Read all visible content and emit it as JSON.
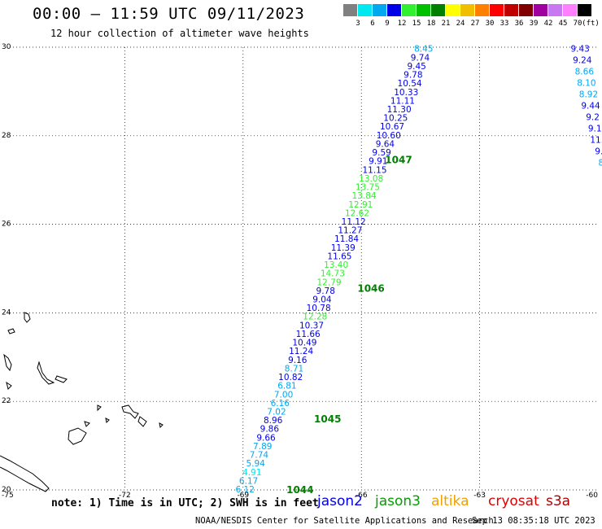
{
  "header": {
    "title": "00:00 – 11:59 UTC 09/11/2023",
    "subtitle": "12 hour collection of altimeter wave heights"
  },
  "color_scale": {
    "labels": [
      "3",
      "6",
      "9",
      "12",
      "15",
      "18",
      "21",
      "24",
      "27",
      "30",
      "33",
      "36",
      "39",
      "42",
      "45",
      "70"
    ],
    "unit": "(ft)",
    "colors": [
      "#808080",
      "#00e8f0",
      "#00a8f0",
      "#0000e8",
      "#30f030",
      "#00c000",
      "#008000",
      "#ffff00",
      "#f0c000",
      "#ff8000",
      "#ff0000",
      "#c00000",
      "#800000",
      "#a000a0",
      "#c878f0",
      "#ff80ff",
      "#000000"
    ]
  },
  "axes": {
    "lon_labels": [
      "-75",
      "-72",
      "-69",
      "-66",
      "-63",
      "-60"
    ],
    "lat_labels": [
      "30",
      "28",
      "26",
      "24",
      "22",
      "20"
    ]
  },
  "cycle_labels": [
    {
      "text": "1047",
      "lon": -65.4,
      "lat": 27.45
    },
    {
      "text": "1046",
      "lon": -66.1,
      "lat": 24.55
    },
    {
      "text": "1045",
      "lon": -67.2,
      "lat": 21.6
    },
    {
      "text": "1044",
      "lon": -67.9,
      "lat": 20.0
    }
  ],
  "tracks": [
    {
      "name": "main",
      "start": {
        "lon": -68.95,
        "lat": 20.0
      },
      "end": {
        "lon": -64.42,
        "lat": 29.95
      },
      "values": [
        {
          "v": "6.12",
          "c": "#00a8f0"
        },
        {
          "v": "6.17",
          "c": "#00a8f0"
        },
        {
          "v": "4.91",
          "c": "#00e8f0"
        },
        {
          "v": "5.94",
          "c": "#00a8f0"
        },
        {
          "v": "7.74",
          "c": "#00a8f0"
        },
        {
          "v": "7.89",
          "c": "#00a8f0"
        },
        {
          "v": "9.66",
          "c": "#0000e8"
        },
        {
          "v": "9.86",
          "c": "#0000e8"
        },
        {
          "v": "8.96",
          "c": "#0000e8"
        },
        {
          "v": "7.02",
          "c": "#00a8f0"
        },
        {
          "v": "6.16",
          "c": "#00a8f0"
        },
        {
          "v": "7.00",
          "c": "#00a8f0"
        },
        {
          "v": "6.81",
          "c": "#00a8f0"
        },
        {
          "v": "10.82",
          "c": "#0000e8"
        },
        {
          "v": "8.71",
          "c": "#00a8f0"
        },
        {
          "v": "9.16",
          "c": "#0000e8"
        },
        {
          "v": "11.24",
          "c": "#0000e8"
        },
        {
          "v": "10.49",
          "c": "#0000e8"
        },
        {
          "v": "11.66",
          "c": "#0000e8"
        },
        {
          "v": "10.37",
          "c": "#0000e8"
        },
        {
          "v": "12.28",
          "c": "#30f030"
        },
        {
          "v": "10.78",
          "c": "#0000e8"
        },
        {
          "v": "9.04",
          "c": "#0000e8"
        },
        {
          "v": "9.78",
          "c": "#0000e8"
        },
        {
          "v": "12.79",
          "c": "#30f030"
        },
        {
          "v": "14.73",
          "c": "#30f030"
        },
        {
          "v": "13.40",
          "c": "#30f030"
        },
        {
          "v": "11.65",
          "c": "#0000e8"
        },
        {
          "v": "11.39",
          "c": "#0000e8"
        },
        {
          "v": "11.84",
          "c": "#0000e8"
        },
        {
          "v": "11.27",
          "c": "#0000e8"
        },
        {
          "v": "11.12",
          "c": "#0000e8"
        },
        {
          "v": "12.62",
          "c": "#30f030"
        },
        {
          "v": "12.91",
          "c": "#30f030"
        },
        {
          "v": "13.84",
          "c": "#30f030"
        },
        {
          "v": "13.75",
          "c": "#30f030"
        },
        {
          "v": "13.08",
          "c": "#30f030"
        },
        {
          "v": "11.15",
          "c": "#0000e8"
        },
        {
          "v": "9.91",
          "c": "#0000e8"
        },
        {
          "v": "9.59",
          "c": "#0000e8"
        },
        {
          "v": "9.64",
          "c": "#0000e8"
        },
        {
          "v": "10.60",
          "c": "#0000e8"
        },
        {
          "v": "10.67",
          "c": "#0000e8"
        },
        {
          "v": "10.25",
          "c": "#0000e8"
        },
        {
          "v": "11.30",
          "c": "#0000e8"
        },
        {
          "v": "11.11",
          "c": "#0000e8"
        },
        {
          "v": "10.33",
          "c": "#0000e8"
        },
        {
          "v": "10.54",
          "c": "#0000e8"
        },
        {
          "v": "9.78",
          "c": "#0000e8"
        },
        {
          "v": "9.45",
          "c": "#0000e8"
        },
        {
          "v": "9.74",
          "c": "#0000e8"
        },
        {
          "v": "8.45",
          "c": "#00a8f0"
        }
      ]
    },
    {
      "name": "east",
      "start": {
        "lon": -59.92,
        "lat": 27.38
      },
      "end": {
        "lon": -60.45,
        "lat": 29.95
      },
      "values": [
        {
          "v": "8",
          "c": "#00a8f0"
        },
        {
          "v": "9.",
          "c": "#0000e8"
        },
        {
          "v": "11.",
          "c": "#0000e8"
        },
        {
          "v": "9.1",
          "c": "#0000e8"
        },
        {
          "v": "9.2",
          "c": "#0000e8"
        },
        {
          "v": "9.44",
          "c": "#0000e8"
        },
        {
          "v": "8.92",
          "c": "#00a8f0"
        },
        {
          "v": "8.10",
          "c": "#00a8f0"
        },
        {
          "v": "8.66",
          "c": "#00a8f0"
        },
        {
          "v": "9.24",
          "c": "#0000e8"
        },
        {
          "v": "9.43",
          "c": "#0000e8"
        }
      ]
    }
  ],
  "footer": {
    "note": "note: 1) Time is in UTC; 2) SWH is in feet",
    "satellites": [
      {
        "name": "jason2",
        "color": "#0000e8"
      },
      {
        "name": "jason3",
        "color": "#00a000"
      },
      {
        "name": "altika",
        "color": "#f0a000"
      },
      {
        "name": "cryosat",
        "color": "#e00000"
      },
      {
        "name": "s3a",
        "color": "#b00000"
      }
    ],
    "credit": "NOAA/NESDIS Center for Satellite Applications and Research",
    "timestamp": "Sep 13 08:35:18 UTC 2023"
  }
}
